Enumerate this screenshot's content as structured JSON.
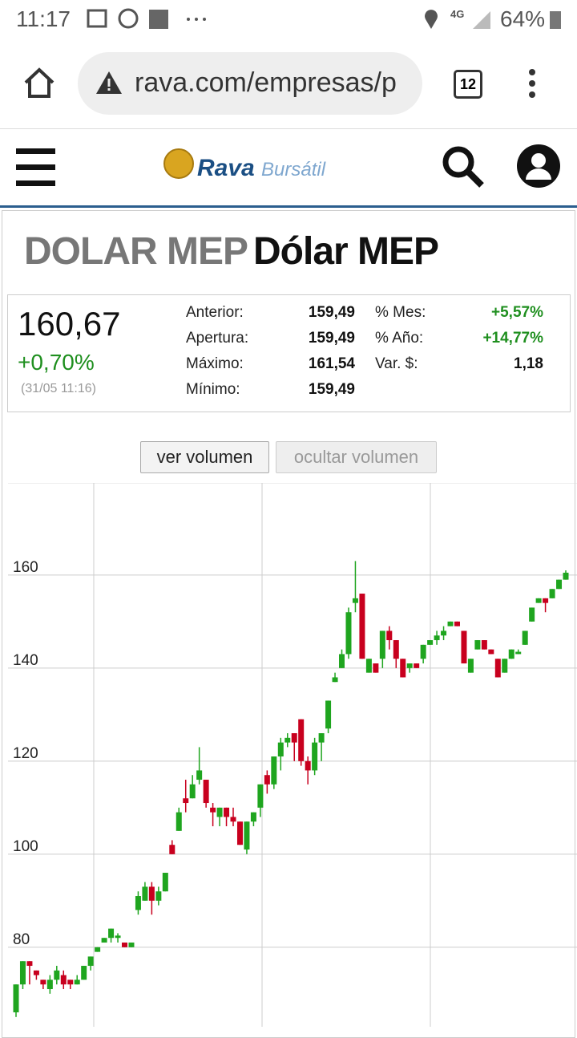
{
  "status_bar": {
    "time": "11:17",
    "network": "4G",
    "battery": "64%"
  },
  "browser": {
    "url": "rava.com/empresas/p",
    "tabs": "12"
  },
  "site": {
    "logo_main": "Rava",
    "logo_sub": "Bursátil"
  },
  "heading": {
    "ticker": "DOLAR MEP",
    "name": "Dólar MEP"
  },
  "quote": {
    "price": "160,67",
    "change": "+0,70%",
    "timestamp": "(31/05 11:16)",
    "left": [
      [
        "Anterior:",
        "159,49"
      ],
      [
        "Apertura:",
        "159,49"
      ],
      [
        "Máximo:",
        "161,54"
      ],
      [
        "Mínimo:",
        "159,49"
      ]
    ],
    "right": [
      [
        "% Mes:",
        "+5,57%"
      ],
      [
        "% Año:",
        "+14,77%"
      ],
      [
        "Var. $:",
        "1,18"
      ]
    ]
  },
  "buttons": [
    "ver volumen",
    "ocultar volumen"
  ],
  "chart_data": {
    "type": "candlestick",
    "up_color": "#1fa51f",
    "down_color": "#c8001e",
    "grid": true,
    "ylim": [
      62.9,
      179.8
    ],
    "yticks": [
      80,
      100,
      120,
      140,
      160
    ],
    "open": [
      66,
      72,
      77,
      75,
      73,
      71,
      73,
      74,
      73,
      72,
      73,
      76,
      79,
      81,
      82,
      82,
      81,
      80,
      88,
      90,
      93,
      90,
      92,
      102,
      105,
      112,
      112,
      116,
      116,
      110,
      108,
      110,
      108,
      107,
      101,
      107,
      110,
      117,
      115,
      121,
      124,
      126,
      129,
      120,
      118,
      124,
      127,
      137,
      140,
      143,
      154,
      156,
      139,
      141,
      142,
      148,
      146,
      142,
      140,
      141,
      142,
      145,
      146,
      147,
      149,
      150,
      148,
      139,
      144,
      146,
      144,
      142,
      139,
      142,
      143,
      145,
      150,
      154,
      155,
      155,
      157,
      159
    ],
    "high": [
      72,
      77,
      77,
      75,
      73,
      74,
      76,
      75,
      73,
      74,
      76,
      78,
      80,
      82,
      84,
      83,
      81,
      81,
      92,
      94,
      94,
      93,
      96,
      103,
      110,
      116,
      117,
      123,
      116,
      111,
      110,
      110,
      110,
      107,
      107,
      109,
      115,
      118,
      121,
      125,
      126,
      126,
      129,
      121,
      125,
      126,
      133,
      139,
      144,
      153,
      163,
      156,
      142,
      141,
      148,
      149,
      146,
      142,
      141,
      141,
      145,
      146,
      148,
      149,
      150,
      150,
      148,
      142,
      146,
      146,
      144,
      142,
      142,
      144,
      144,
      148,
      153,
      155,
      155,
      157,
      159,
      161
    ],
    "low": [
      65,
      71,
      72,
      73,
      71,
      70,
      72,
      71,
      71,
      72,
      73,
      75,
      79,
      81,
      81,
      81,
      80,
      80,
      87,
      90,
      87,
      89,
      92,
      100,
      105,
      109,
      112,
      115,
      110,
      106,
      106,
      106,
      106,
      102,
      100,
      106,
      108,
      113,
      114,
      118,
      123,
      120,
      119,
      115,
      117,
      120,
      126,
      137,
      140,
      142,
      152,
      142,
      139,
      139,
      140,
      144,
      140,
      138,
      139,
      140,
      141,
      145,
      145,
      146,
      149,
      149,
      141,
      139,
      144,
      144,
      143,
      138,
      139,
      142,
      143,
      145,
      150,
      154,
      152,
      155,
      157,
      159
    ],
    "close": [
      72,
      77,
      76,
      74,
      72,
      73,
      75,
      72,
      72,
      73,
      76,
      78,
      80,
      82,
      84,
      82.5,
      80,
      81,
      91,
      93,
      90,
      92,
      96,
      100,
      109,
      111,
      115,
      118,
      111,
      109,
      110,
      108,
      107,
      102,
      107,
      109,
      115,
      115,
      121,
      124,
      125,
      124,
      120,
      118,
      124,
      126,
      133,
      138,
      143,
      152,
      155,
      142,
      142,
      139,
      148,
      146,
      142,
      138,
      141,
      140,
      145,
      146,
      147,
      148,
      150,
      149,
      141,
      142,
      146,
      144,
      143,
      138,
      142,
      144,
      143.5,
      148,
      153,
      155,
      154,
      157,
      159,
      160.5
    ]
  }
}
